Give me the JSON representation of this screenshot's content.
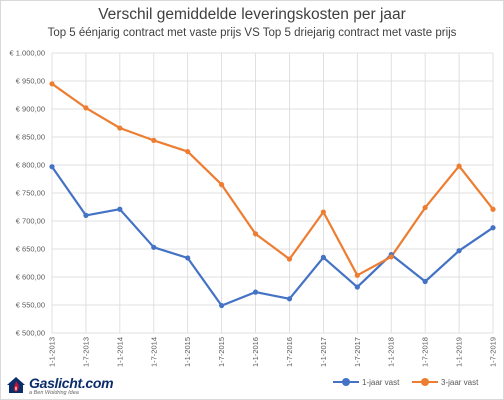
{
  "brand": {
    "name": "Gaslicht.com",
    "tagline": "a Ben Woldring Idea",
    "colors": {
      "navy": "#0b2e6b",
      "red": "#c8102e"
    }
  },
  "chart_data": {
    "type": "line",
    "title": "Verschil gemiddelde leveringskosten per jaar",
    "subtitle": "Top 5 éénjarig contract met vaste prijs VS Top 5 driejarig contract met vaste prijs",
    "categories": [
      "1-1-2013",
      "1-7-2013",
      "1-1-2014",
      "1-7-2014",
      "1-1-2015",
      "1-7-2015",
      "1-1-2016",
      "1-7-2016",
      "1-1-2017",
      "1-7-2017",
      "1-1-2018",
      "1-7-2018",
      "1-1-2019",
      "1-7-2019"
    ],
    "ylim": [
      500,
      1000
    ],
    "ytick_step": 50,
    "ytick_labels": [
      "€ 500,00",
      "€ 550,00",
      "€ 600,00",
      "€ 650,00",
      "€ 700,00",
      "€ 750,00",
      "€ 800,00",
      "€ 850,00",
      "€ 900,00",
      "€ 950,00",
      "€ 1.000,00"
    ],
    "grid": true,
    "legend_position": "bottom-right",
    "series": [
      {
        "name": "1-jaar vast",
        "color": "#4472c4",
        "values": [
          797,
          710,
          721,
          653,
          634,
          549,
          573,
          561,
          635,
          582,
          640,
          592,
          647,
          688
        ]
      },
      {
        "name": "3-jaar vast",
        "color": "#ed7d31",
        "values": [
          945,
          902,
          866,
          844,
          824,
          765,
          677,
          632,
          716,
          603,
          636,
          724,
          798,
          721
        ]
      }
    ]
  }
}
